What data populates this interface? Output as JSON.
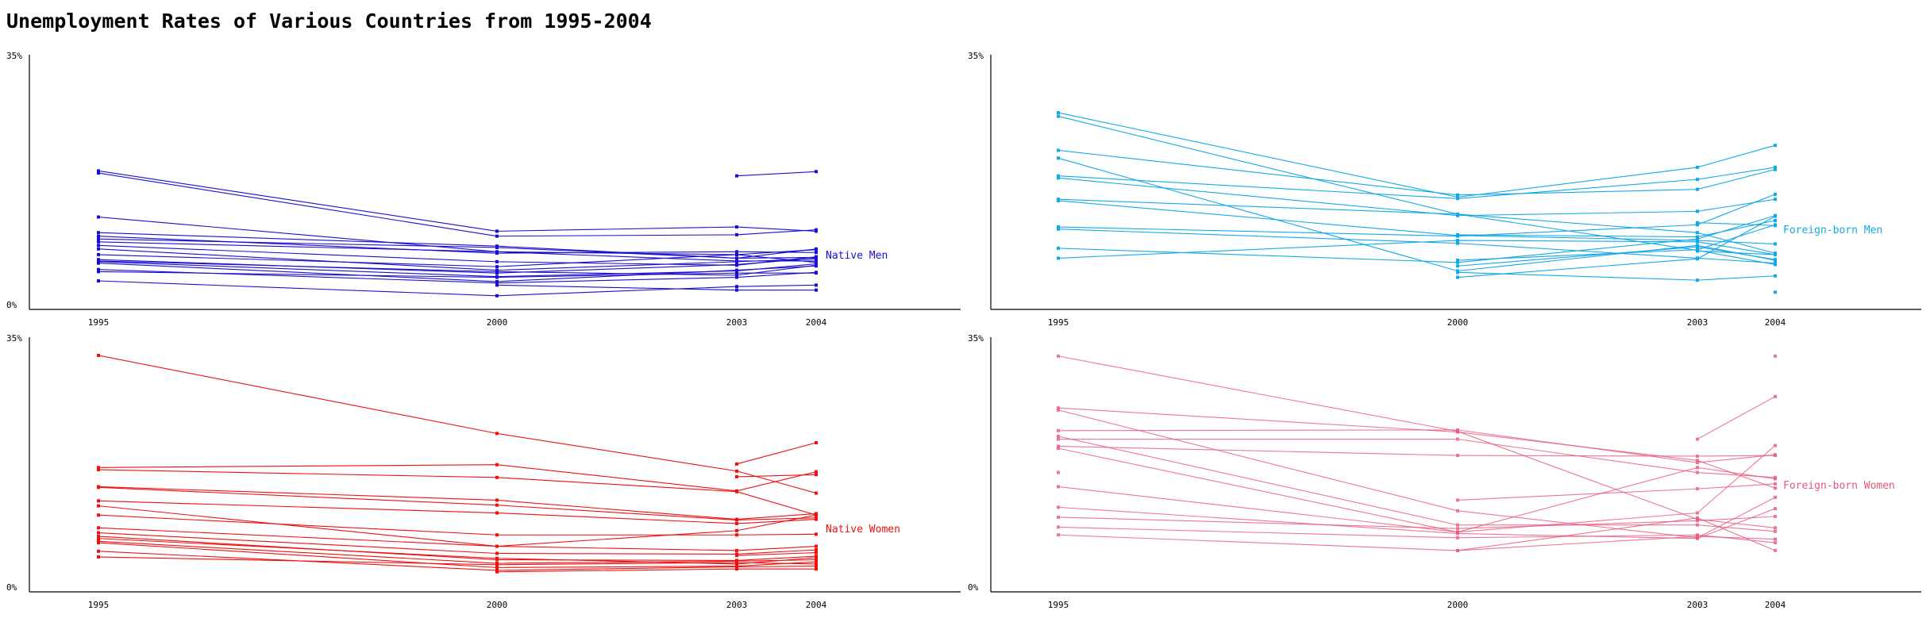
{
  "title": "Unemployment Rates of Various Countries from 1995-2004",
  "chart_data": [
    {
      "type": "line",
      "series_label": "Native Men",
      "color": "#1a0fd1",
      "opacity": 1,
      "x": [
        1995,
        2000,
        2003,
        2004
      ],
      "xtick_labels": [
        "1995",
        "2000",
        "2003",
        "2004"
      ],
      "ylim": [
        0,
        35
      ],
      "ytick_labels": [
        "35%",
        "0%"
      ],
      "series": [
        {
          "values": [
            19.3,
            10.8,
            11.4,
            10.8
          ]
        },
        {
          "values": [
            19.0,
            10.1,
            10.3,
            11.0
          ]
        },
        {
          "values": [
            12.8,
            7.9,
            7.5,
            8.2
          ]
        },
        {
          "values": [
            10.6,
            8.7,
            7.0,
            7.1
          ]
        },
        {
          "values": [
            10.1,
            7.7,
            7.9,
            7.8
          ]
        },
        {
          "values": [
            9.7,
            8.5,
            7.0,
            8.3
          ]
        },
        {
          "values": [
            9.3,
            7.9,
            6.6,
            6.6
          ]
        },
        {
          "values": [
            8.8,
            6.5,
            6.0,
            7.2
          ]
        },
        {
          "values": [
            8.3,
            5.3,
            6.5,
            6.9
          ]
        },
        {
          "values": [
            7.5,
            5.8,
            7.5,
            6.4
          ]
        },
        {
          "values": [
            6.8,
            4.9,
            6.1,
            7.0
          ]
        },
        {
          "values": [
            6.5,
            4.4,
            5.2,
            6.2
          ]
        },
        {
          "values": [
            6.6,
            5.1,
            4.6,
            6.0
          ]
        },
        {
          "values": [
            6.3,
            3.7,
            5.3,
            5.9
          ]
        },
        {
          "values": [
            5.4,
            3.5,
            4.3,
            5.0
          ]
        },
        {
          "values": [
            5.1,
            4.3,
            4.9,
            4.9
          ]
        },
        {
          "values": [
            3.8,
            1.7,
            3.0,
            3.2
          ]
        },
        {
          "values": [
            null,
            3.2,
            2.5,
            2.5
          ]
        },
        {
          "values": [
            null,
            null,
            18.6,
            19.2
          ]
        }
      ]
    },
    {
      "type": "line",
      "series_label": "Foreign-born Men",
      "color": "#13a9e6",
      "opacity": 1,
      "x": [
        1995,
        2000,
        2003,
        2004
      ],
      "xtick_labels": [
        "1995",
        "2000",
        "2003",
        "2004"
      ],
      "ylim": [
        0,
        35
      ],
      "ytick_labels": [
        "35%",
        ""
      ],
      "series": [
        {
          "values": [
            27.5,
            15.6,
            19.8,
            22.9
          ]
        },
        {
          "values": [
            27.0,
            13.2,
            8.1,
            6.1
          ]
        },
        {
          "values": [
            22.2,
            15.9,
            16.7,
            19.5
          ]
        },
        {
          "values": [
            21.1,
            5.2,
            8.8,
            6.7
          ]
        },
        {
          "values": [
            18.6,
            15.4,
            18.1,
            19.8
          ]
        },
        {
          "values": [
            18.3,
            13.0,
            13.6,
            15.3
          ]
        },
        {
          "values": [
            15.3,
            13.2,
            10.6,
            7.7
          ]
        },
        {
          "values": [
            15.1,
            10.2,
            9.5,
            9.0
          ]
        },
        {
          "values": [
            11.4,
            10.1,
            11.7,
            16.0
          ]
        },
        {
          "values": [
            11.1,
            9.1,
            7.0,
            6.3
          ]
        },
        {
          "values": [
            8.4,
            6.4,
            9.7,
            13.0
          ]
        },
        {
          "values": [
            7.0,
            9.5,
            9.3,
            7.5
          ]
        },
        {
          "values": [
            null,
            6.7,
            8.2,
            11.7
          ]
        },
        {
          "values": [
            null,
            5.9,
            8.6,
            6.8
          ]
        },
        {
          "values": [
            null,
            4.3,
            6.9,
            12.9
          ]
        },
        {
          "values": [
            null,
            5.0,
            3.9,
            4.5
          ]
        },
        {
          "values": [
            null,
            10.3,
            10.0,
            12.3
          ]
        },
        {
          "values": [
            null,
            null,
            12.0,
            11.6
          ]
        },
        {
          "values": [
            null,
            null,
            null,
            2.2
          ]
        },
        {
          "values": [
            null,
            null,
            8.0,
            7.5
          ]
        }
      ]
    },
    {
      "type": "line",
      "series_label": "Native Women",
      "color": "#ee1111",
      "opacity": 1,
      "x": [
        1995,
        2000,
        2003,
        2004
      ],
      "xtick_labels": [
        "1995",
        "2000",
        "2003",
        "2004"
      ],
      "ylim": [
        0,
        35
      ],
      "ytick_labels": [
        "35%",
        "0%"
      ],
      "series": [
        {
          "values": [
            33.1,
            22.1,
            16.8,
            13.7
          ]
        },
        {
          "values": [
            17.3,
            17.7,
            14.0,
            16.7
          ]
        },
        {
          "values": [
            17.0,
            15.9,
            13.9,
            10.6
          ]
        },
        {
          "values": [
            14.6,
            12.7,
            10.0,
            10.8
          ]
        },
        {
          "values": [
            14.5,
            12.0,
            9.9,
            10.2
          ]
        },
        {
          "values": [
            12.6,
            10.9,
            9.4,
            10.0
          ]
        },
        {
          "values": [
            11.9,
            6.2,
            8.4,
            10.6
          ]
        },
        {
          "values": [
            10.6,
            7.8,
            7.8,
            7.9
          ]
        },
        {
          "values": [
            8.8,
            6.2,
            5.6,
            6.2
          ]
        },
        {
          "values": [
            8.1,
            5.2,
            5.1,
            5.7
          ]
        },
        {
          "values": [
            7.6,
            4.3,
            4.2,
            4.8
          ]
        },
        {
          "values": [
            7.3,
            4.5,
            3.7,
            4.6
          ]
        },
        {
          "values": [
            6.9,
            3.8,
            4.1,
            4.3
          ]
        },
        {
          "values": [
            6.7,
            3.2,
            3.4,
            4.0
          ]
        },
        {
          "values": [
            5.5,
            2.8,
            3.3,
            3.4
          ]
        },
        {
          "values": [
            4.7,
            3.6,
            3.9,
            3.7
          ]
        },
        {
          "values": [
            null,
            2.6,
            3.0,
            3.0
          ]
        },
        {
          "values": [
            null,
            null,
            17.8,
            20.8
          ]
        },
        {
          "values": [
            null,
            null,
            16.0,
            16.3
          ]
        },
        {
          "values": [
            null,
            null,
            4.9,
            5.3
          ]
        }
      ]
    },
    {
      "type": "line",
      "series_label": "Foreign-born Women",
      "color": "#e8567a",
      "opacity": 0.8,
      "x": [
        1995,
        2000,
        2003,
        2004
      ],
      "xtick_labels": [
        "1995",
        "2000",
        "2003",
        "2004"
      ],
      "ylim": [
        0,
        35
      ],
      "ytick_labels": [
        "35%",
        "0%"
      ],
      "series": [
        {
          "values": [
            33.0,
            22.4,
            10.0,
            8.8
          ]
        },
        {
          "values": [
            25.7,
            22.3,
            18.3,
            14.4
          ]
        },
        {
          "values": [
            25.4,
            11.2,
            7.4,
            13.1
          ]
        },
        {
          "values": [
            22.5,
            22.6,
            18.0,
            19.1
          ]
        },
        {
          "values": [
            21.3,
            21.3,
            16.6,
            15.9
          ]
        },
        {
          "values": [
            20.3,
            19.0,
            18.9,
            19.0
          ]
        },
        {
          "values": [
            20.0,
            8.2,
            10.9,
            20.4
          ]
        },
        {
          "values": [
            21.7,
            9.2,
            9.2,
            8.3
          ]
        },
        {
          "values": [
            14.6,
            8.2,
            17.3,
            15.7
          ]
        },
        {
          "values": [
            11.7,
            8.0,
            7.3,
            11.5
          ]
        },
        {
          "values": [
            10.3,
            8.7,
            9.8,
            10.4
          ]
        },
        {
          "values": [
            8.9,
            7.4,
            7.8,
            6.7
          ]
        },
        {
          "values": [
            7.8,
            5.6,
            7.6,
            7.2
          ]
        },
        {
          "values": [
            null,
            12.7,
            14.3,
            15.0
          ]
        },
        {
          "values": [
            null,
            5.6,
            10.2,
            5.6
          ]
        },
        {
          "values": [
            null,
            null,
            21.3,
            27.3
          ]
        },
        {
          "values": [
            null,
            null,
            null,
            33.0
          ]
        },
        {
          "values": [
            16.6,
            null,
            null,
            null
          ]
        }
      ]
    }
  ]
}
